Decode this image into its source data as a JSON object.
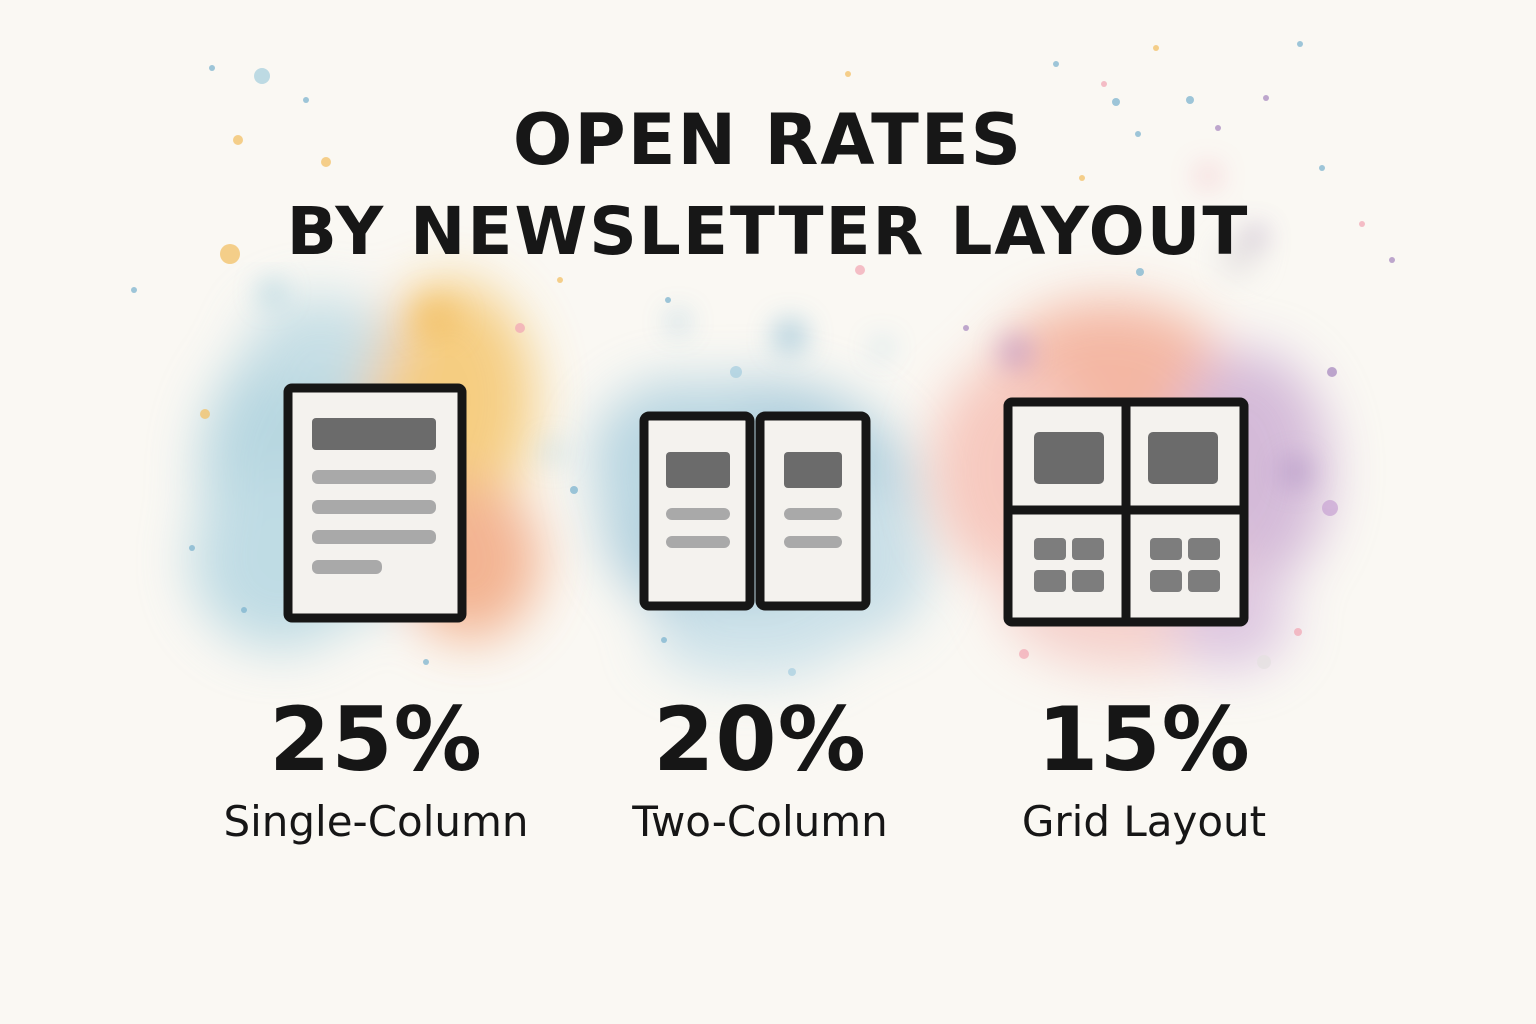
{
  "title": {
    "line1": "OPEN RATES",
    "line2": "BY NEWSLETTER LAYOUT"
  },
  "items": [
    {
      "value": "25%",
      "label": "Single-Column",
      "open_rate_percent": 25,
      "icon": "single-column-layout-icon",
      "splash_colors": [
        "#8fc3d6",
        "#f3b43e",
        "#ef8a57"
      ]
    },
    {
      "value": "20%",
      "label": "Two-Column",
      "open_rate_percent": 20,
      "icon": "two-column-layout-icon",
      "splash_colors": [
        "#7eb4cf",
        "#a9cfe0"
      ]
    },
    {
      "value": "15%",
      "label": "Grid Layout",
      "open_rate_percent": 15,
      "icon": "grid-layout-icon",
      "splash_colors": [
        "#f0896a",
        "#b98fc6",
        "#f4a79a"
      ]
    }
  ],
  "colors": {
    "background": "#faf8f3",
    "ink": "#161616",
    "icon_fill": "#f4f2ee",
    "placeholder_dark": "#6b6b6b",
    "placeholder_light": "#a9a9a9"
  }
}
